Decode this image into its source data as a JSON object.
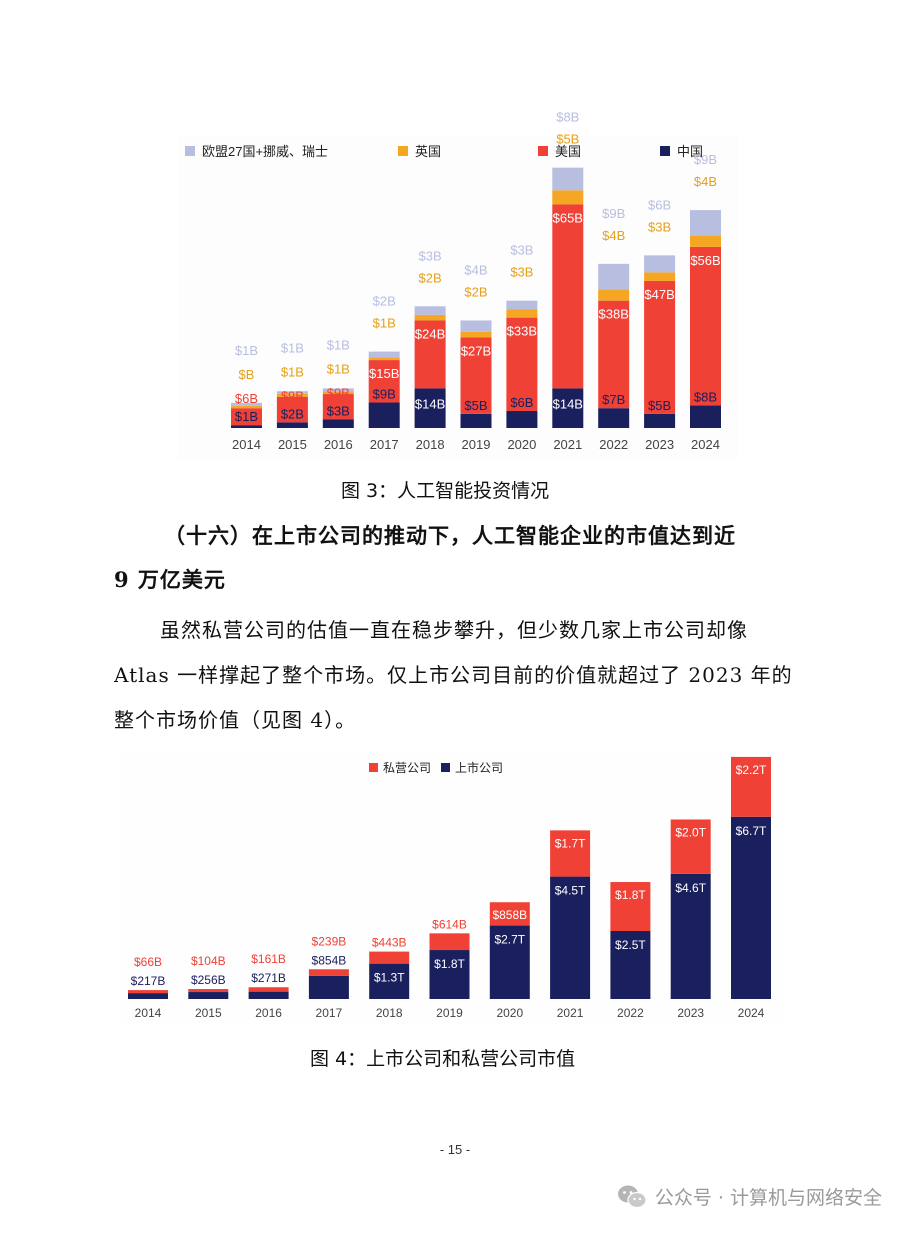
{
  "chart_data": [
    {
      "type": "bar",
      "stacked": true,
      "categories": [
        "2014",
        "2015",
        "2016",
        "2017",
        "2018",
        "2019",
        "2020",
        "2021",
        "2022",
        "2023",
        "2024"
      ],
      "series": [
        {
          "name": "中国",
          "color": "#1a1f5e",
          "values": [
            1,
            2,
            3,
            9,
            14,
            5,
            6,
            14,
            7,
            5,
            8
          ],
          "labels": [
            "$1B",
            "$2B",
            "$3B",
            "$9B",
            "$14B",
            "$5B",
            "$6B",
            "$14B",
            "$7B",
            "$5B",
            "$8B"
          ]
        },
        {
          "name": "美国",
          "color": "#ef4136",
          "values": [
            6,
            9,
            9,
            15,
            24,
            27,
            33,
            65,
            38,
            47,
            56
          ],
          "labels": [
            "$6B",
            "$9B",
            "$9B",
            "$15B",
            "$24B",
            "$27B",
            "$33B",
            "$65B",
            "$38B",
            "$47B",
            "$56B"
          ]
        },
        {
          "name": "英国",
          "color": "#f5a623",
          "values": [
            0.5,
            1,
            1,
            1,
            2,
            2,
            3,
            5,
            4,
            3,
            4
          ],
          "labels": [
            "$B",
            "$1B",
            "$1B",
            "$1B",
            "$2B",
            "$2B",
            "$3B",
            "$5B",
            "$4B",
            "$3B",
            "$4B"
          ]
        },
        {
          "name": "欧盟27国+挪威、瑞士",
          "color": "#b8bedf",
          "values": [
            1,
            1,
            1,
            2,
            3,
            4,
            3,
            8,
            9,
            6,
            9
          ],
          "labels": [
            "$1B",
            "$1B",
            "$1B",
            "$2B",
            "$3B",
            "$4B",
            "$3B",
            "$8B",
            "$9B",
            "$6B",
            "$9B"
          ]
        }
      ],
      "legend_position": "top",
      "grid": false
    },
    {
      "type": "bar",
      "stacked": true,
      "categories": [
        "2014",
        "2015",
        "2016",
        "2017",
        "2018",
        "2019",
        "2020",
        "2021",
        "2022",
        "2023",
        "2024"
      ],
      "series": [
        {
          "name": "上市公司",
          "color": "#1a1f5e",
          "values": [
            0.217,
            0.256,
            0.271,
            0.854,
            1.3,
            1.8,
            2.7,
            4.5,
            2.5,
            4.6,
            6.7
          ],
          "labels": [
            "$217B",
            "$256B",
            "$271B",
            "$854B",
            "$1.3T",
            "$1.8T",
            "$2.7T",
            "$4.5T",
            "$2.5T",
            "$4.6T",
            "$6.7T"
          ]
        },
        {
          "name": "私营公司",
          "color": "#ef4136",
          "values": [
            0.066,
            0.104,
            0.161,
            0.239,
            0.443,
            0.614,
            0.858,
            1.7,
            1.8,
            2.0,
            2.2
          ],
          "labels": [
            "$66B",
            "$104B",
            "$161B",
            "$239B",
            "$443B",
            "$614B",
            "$858B",
            "$1.7T",
            "$1.8T",
            "$2.0T",
            "$2.2T"
          ]
        }
      ],
      "legend_position": "top",
      "grid": false
    }
  ],
  "captions": {
    "fig3": "图 3：人工智能投资情况",
    "fig4": "图 4：上市公司和私营公司市值"
  },
  "heading": {
    "line1": "（十六）在上市公司的推动下，人工智能企业的市值达到近",
    "line2": "9 万亿美元"
  },
  "paragraph": "虽然私营公司的估值一直在稳步攀升，但少数几家上市公司却像 Atlas 一样撑起了整个市场。仅上市公司目前的价值就超过了 2023 年的整个市场价值（见图 4）。",
  "page_number": "- 15 -",
  "watermark": "公众号 · 计算机与网络安全"
}
